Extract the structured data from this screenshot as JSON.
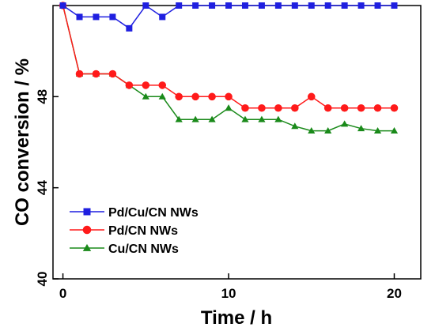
{
  "chart_data": {
    "type": "line",
    "xlabel": "Time / h",
    "ylabel": "CO conversion / %",
    "xlim": [
      -0.6,
      21.6
    ],
    "ylim": [
      40,
      52
    ],
    "x_ticks": [
      0,
      10,
      20
    ],
    "y_ticks": [
      40,
      44,
      48
    ],
    "grid": false,
    "legend_position": "lower-left",
    "x": [
      0,
      1,
      2,
      3,
      4,
      5,
      6,
      7,
      8,
      9,
      10,
      11,
      12,
      13,
      14,
      15,
      16,
      17,
      18,
      19,
      20
    ],
    "series": [
      {
        "name": "Pd/Cu/CN NWs",
        "color": "#1f1fe0",
        "marker": "square",
        "values": [
          52,
          51.5,
          51.5,
          51.5,
          51,
          52,
          51.5,
          52,
          52,
          52,
          52,
          52,
          52,
          52,
          52,
          52,
          52,
          52,
          52,
          52,
          52
        ]
      },
      {
        "name": "Pd/CN NWs",
        "color": "#ff1a1a",
        "marker": "circle",
        "values": [
          52,
          49,
          49,
          49,
          48.5,
          48.5,
          48.5,
          48,
          48,
          48,
          48,
          47.5,
          47.5,
          47.5,
          47.5,
          48,
          47.5,
          47.5,
          47.5,
          47.5,
          47.5
        ]
      },
      {
        "name": "Cu/CN NWs",
        "color": "#1a8a1a",
        "marker": "triangle",
        "values": [
          52,
          49,
          49,
          49,
          48.5,
          48,
          48,
          47,
          47,
          47,
          47.5,
          47,
          47,
          47,
          46.7,
          46.5,
          46.5,
          46.8,
          46.6,
          46.5,
          46.5
        ]
      }
    ]
  }
}
